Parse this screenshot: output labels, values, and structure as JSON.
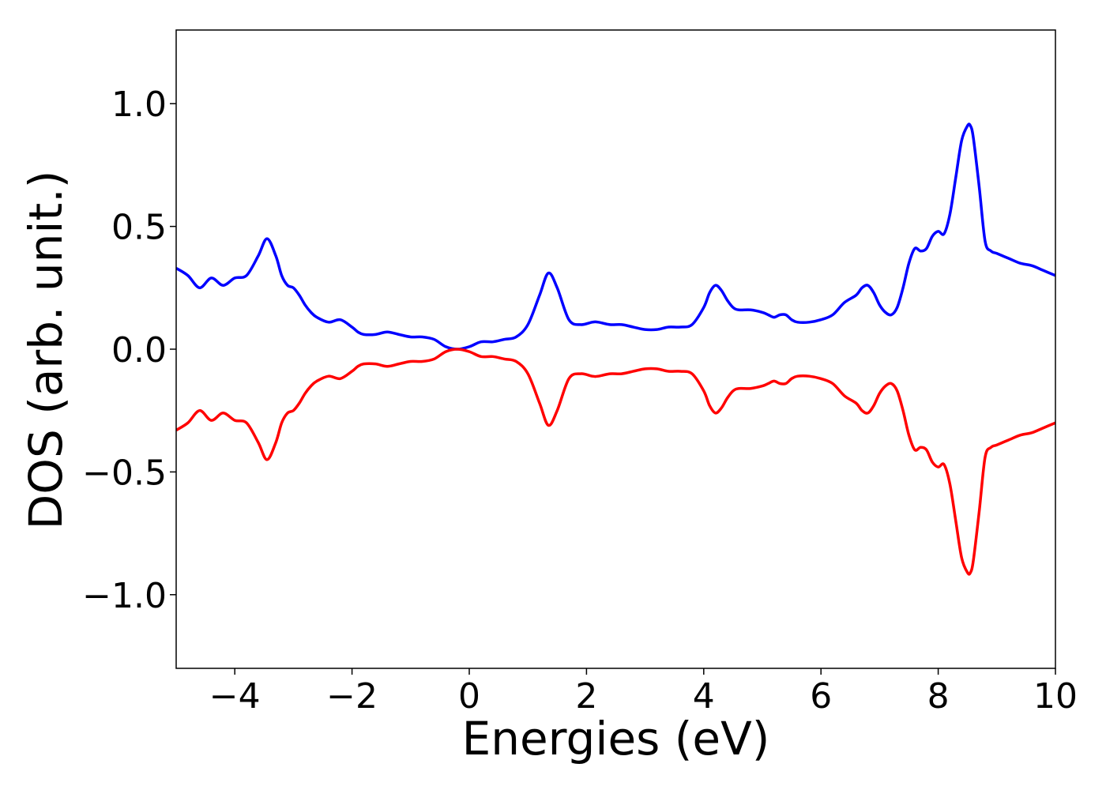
{
  "chart_data": {
    "type": "line",
    "title": "",
    "xlabel": "Energies (eV)",
    "ylabel": "DOS (arb. unit.)",
    "xlim": [
      -5,
      10
    ],
    "ylim": [
      -1.3,
      1.3
    ],
    "xticks": [
      -4,
      -2,
      0,
      2,
      4,
      6,
      8,
      10
    ],
    "xtick_labels": [
      "−4",
      "−2",
      "0",
      "2",
      "4",
      "6",
      "8",
      "10"
    ],
    "yticks": [
      -1.0,
      -0.5,
      0.0,
      0.5,
      1.0
    ],
    "ytick_labels": [
      "−1.0",
      "−0.5",
      "0.0",
      "0.5",
      "1.0"
    ],
    "grid": false,
    "legend": "none",
    "series": [
      {
        "color": "#0000ff",
        "x": [
          -5.0,
          -4.8,
          -4.6,
          -4.4,
          -4.2,
          -4.0,
          -3.8,
          -3.6,
          -3.45,
          -3.3,
          -3.2,
          -3.1,
          -3.0,
          -2.9,
          -2.8,
          -2.7,
          -2.6,
          -2.4,
          -2.2,
          -2.0,
          -1.9,
          -1.8,
          -1.6,
          -1.4,
          -1.2,
          -1.0,
          -0.8,
          -0.6,
          -0.4,
          -0.2,
          0.0,
          0.2,
          0.4,
          0.6,
          0.8,
          1.0,
          1.2,
          1.35,
          1.5,
          1.7,
          1.9,
          2.1,
          2.2,
          2.4,
          2.6,
          2.8,
          3.0,
          3.2,
          3.4,
          3.6,
          3.8,
          4.0,
          4.1,
          4.2,
          4.3,
          4.4,
          4.5,
          4.6,
          4.8,
          5.0,
          5.1,
          5.2,
          5.3,
          5.4,
          5.5,
          5.6,
          5.8,
          6.0,
          6.2,
          6.4,
          6.6,
          6.7,
          6.8,
          6.9,
          7.0,
          7.1,
          7.2,
          7.3,
          7.4,
          7.5,
          7.6,
          7.7,
          7.8,
          7.9,
          8.0,
          8.1,
          8.2,
          8.3,
          8.4,
          8.5,
          8.55,
          8.6,
          8.7,
          8.8,
          8.9,
          9.0,
          9.2,
          9.4,
          9.6,
          9.8,
          10.0
        ],
        "y": [
          0.33,
          0.3,
          0.25,
          0.29,
          0.26,
          0.29,
          0.3,
          0.38,
          0.45,
          0.38,
          0.3,
          0.26,
          0.25,
          0.22,
          0.18,
          0.15,
          0.13,
          0.11,
          0.12,
          0.09,
          0.07,
          0.06,
          0.06,
          0.07,
          0.06,
          0.05,
          0.05,
          0.04,
          0.01,
          0.0,
          0.01,
          0.03,
          0.03,
          0.04,
          0.05,
          0.1,
          0.22,
          0.31,
          0.25,
          0.12,
          0.1,
          0.11,
          0.11,
          0.1,
          0.1,
          0.09,
          0.08,
          0.08,
          0.09,
          0.09,
          0.1,
          0.17,
          0.23,
          0.26,
          0.24,
          0.2,
          0.17,
          0.16,
          0.16,
          0.15,
          0.14,
          0.13,
          0.14,
          0.14,
          0.12,
          0.11,
          0.11,
          0.12,
          0.14,
          0.19,
          0.22,
          0.25,
          0.26,
          0.23,
          0.18,
          0.15,
          0.14,
          0.17,
          0.25,
          0.35,
          0.41,
          0.4,
          0.41,
          0.46,
          0.48,
          0.47,
          0.55,
          0.7,
          0.85,
          0.91,
          0.91,
          0.86,
          0.66,
          0.44,
          0.4,
          0.39,
          0.37,
          0.35,
          0.34,
          0.32,
          0.3
        ]
      },
      {
        "color": "#ff0000",
        "x": [
          -5.0,
          -4.8,
          -4.6,
          -4.4,
          -4.2,
          -4.0,
          -3.8,
          -3.6,
          -3.45,
          -3.3,
          -3.2,
          -3.1,
          -3.0,
          -2.9,
          -2.8,
          -2.7,
          -2.6,
          -2.4,
          -2.2,
          -2.0,
          -1.9,
          -1.8,
          -1.6,
          -1.4,
          -1.2,
          -1.0,
          -0.8,
          -0.6,
          -0.4,
          -0.2,
          0.0,
          0.2,
          0.4,
          0.6,
          0.8,
          1.0,
          1.2,
          1.35,
          1.5,
          1.7,
          1.9,
          2.1,
          2.2,
          2.4,
          2.6,
          2.8,
          3.0,
          3.2,
          3.4,
          3.6,
          3.8,
          4.0,
          4.1,
          4.2,
          4.3,
          4.4,
          4.5,
          4.6,
          4.8,
          5.0,
          5.1,
          5.2,
          5.3,
          5.4,
          5.5,
          5.6,
          5.8,
          6.0,
          6.2,
          6.4,
          6.6,
          6.7,
          6.8,
          6.9,
          7.0,
          7.1,
          7.2,
          7.3,
          7.4,
          7.5,
          7.6,
          7.7,
          7.8,
          7.9,
          8.0,
          8.1,
          8.2,
          8.3,
          8.4,
          8.5,
          8.55,
          8.6,
          8.7,
          8.8,
          8.9,
          9.0,
          9.2,
          9.4,
          9.6,
          9.8,
          10.0
        ],
        "y": [
          -0.33,
          -0.3,
          -0.25,
          -0.29,
          -0.26,
          -0.29,
          -0.3,
          -0.38,
          -0.45,
          -0.38,
          -0.3,
          -0.26,
          -0.25,
          -0.22,
          -0.18,
          -0.15,
          -0.13,
          -0.11,
          -0.12,
          -0.09,
          -0.07,
          -0.06,
          -0.06,
          -0.07,
          -0.06,
          -0.05,
          -0.05,
          -0.04,
          -0.01,
          0.0,
          -0.01,
          -0.03,
          -0.03,
          -0.04,
          -0.05,
          -0.1,
          -0.22,
          -0.31,
          -0.25,
          -0.12,
          -0.1,
          -0.11,
          -0.11,
          -0.1,
          -0.1,
          -0.09,
          -0.08,
          -0.08,
          -0.09,
          -0.09,
          -0.1,
          -0.17,
          -0.23,
          -0.26,
          -0.24,
          -0.2,
          -0.17,
          -0.16,
          -0.16,
          -0.15,
          -0.14,
          -0.13,
          -0.14,
          -0.14,
          -0.12,
          -0.11,
          -0.11,
          -0.12,
          -0.14,
          -0.19,
          -0.22,
          -0.25,
          -0.26,
          -0.23,
          -0.18,
          -0.15,
          -0.14,
          -0.17,
          -0.25,
          -0.35,
          -0.41,
          -0.4,
          -0.41,
          -0.46,
          -0.48,
          -0.47,
          -0.55,
          -0.7,
          -0.85,
          -0.91,
          -0.91,
          -0.86,
          -0.66,
          -0.44,
          -0.4,
          -0.39,
          -0.37,
          -0.35,
          -0.34,
          -0.32,
          -0.3
        ]
      }
    ]
  }
}
